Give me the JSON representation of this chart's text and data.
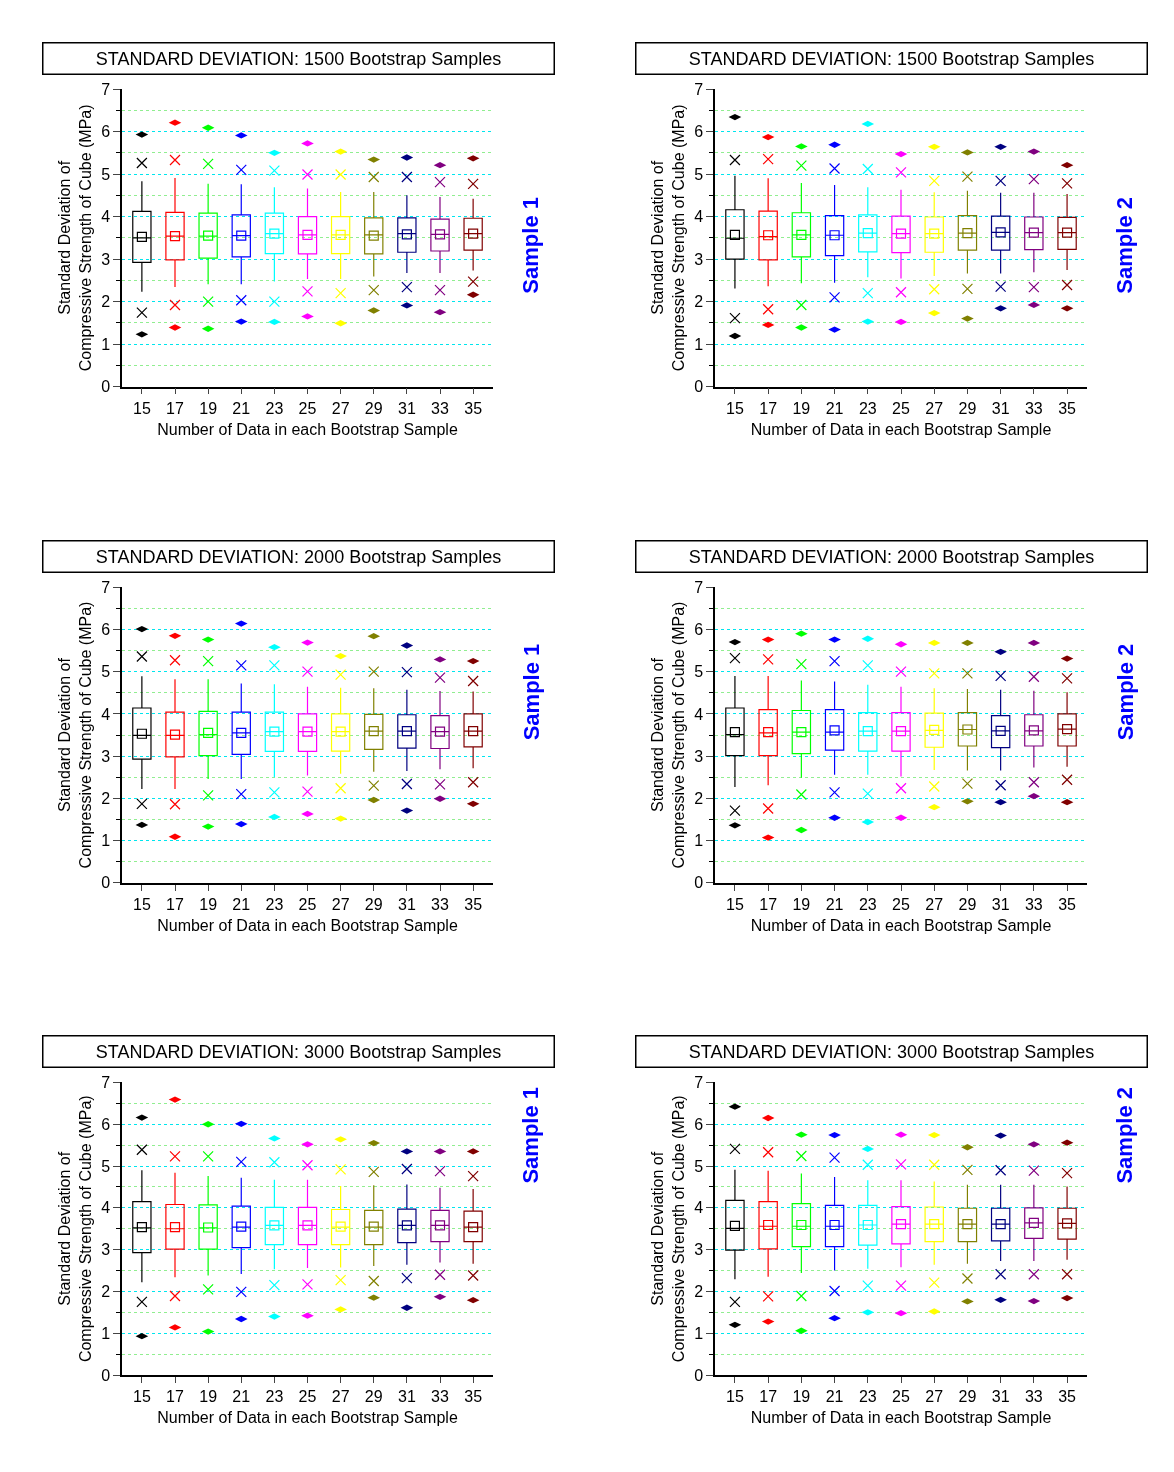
{
  "chart_data": [
    {
      "type": "box",
      "title": "STANDARD DEVIATION: 1500 Bootstrap Samples",
      "xlabel": "Number of Data in each Bootstrap Sample",
      "ylabel": "Standard Deviation of\nCompressive Strength of Cube (MPa)",
      "annotations": [
        "Sample 1"
      ],
      "categories": [
        "15",
        "17",
        "19",
        "21",
        "23",
        "25",
        "27",
        "29",
        "31",
        "33",
        "35"
      ],
      "colors": [
        "#000000",
        "#ff0000",
        "#00ff00",
        "#0000ff",
        "#00ffff",
        "#ff00ff",
        "#ffff00",
        "#808000",
        "#000080",
        "#800080",
        "#800000"
      ],
      "boxes": [
        {
          "low": 2.23,
          "q1": 2.92,
          "median": 3.5,
          "q3": 4.12,
          "high": 4.83,
          "mean": 3.52,
          "outliers": [
            1.23,
            1.74,
            5.26,
            5.93
          ]
        },
        {
          "low": 2.34,
          "q1": 2.98,
          "median": 3.54,
          "q3": 4.1,
          "high": 4.91,
          "mean": 3.54,
          "outliers": [
            1.39,
            1.92,
            5.33,
            6.21
          ]
        },
        {
          "low": 2.41,
          "q1": 3.02,
          "median": 3.54,
          "q3": 4.08,
          "high": 4.77,
          "mean": 3.55,
          "outliers": [
            1.36,
            2.0,
            5.24,
            6.09
          ]
        },
        {
          "low": 2.41,
          "q1": 3.05,
          "median": 3.55,
          "q3": 4.04,
          "high": 4.76,
          "mean": 3.55,
          "outliers": [
            1.53,
            2.03,
            5.1,
            5.91
          ]
        },
        {
          "low": 2.47,
          "q1": 3.13,
          "median": 3.6,
          "q3": 4.08,
          "high": 4.69,
          "mean": 3.6,
          "outliers": [
            1.52,
            2.0,
            5.08,
            5.5
          ]
        },
        {
          "low": 2.53,
          "q1": 3.12,
          "median": 3.57,
          "q3": 4.0,
          "high": 4.66,
          "mean": 3.57,
          "outliers": [
            1.65,
            2.24,
            4.99,
            5.72
          ]
        },
        {
          "low": 2.53,
          "q1": 3.13,
          "median": 3.57,
          "q3": 4.0,
          "high": 4.58,
          "mean": 3.57,
          "outliers": [
            1.49,
            2.2,
            4.99,
            5.53
          ]
        },
        {
          "low": 2.59,
          "q1": 3.12,
          "median": 3.57,
          "q3": 3.97,
          "high": 4.58,
          "mean": 3.55,
          "outliers": [
            1.79,
            2.27,
            4.93,
            5.34
          ]
        },
        {
          "low": 2.67,
          "q1": 3.16,
          "median": 3.6,
          "q3": 3.97,
          "high": 4.5,
          "mean": 3.58,
          "outliers": [
            1.91,
            2.34,
            4.93,
            5.39
          ]
        },
        {
          "low": 2.67,
          "q1": 3.19,
          "median": 3.58,
          "q3": 3.94,
          "high": 4.46,
          "mean": 3.58,
          "outliers": [
            1.75,
            2.27,
            4.81,
            5.21
          ]
        },
        {
          "low": 2.73,
          "q1": 3.21,
          "median": 3.6,
          "q3": 3.96,
          "high": 4.42,
          "mean": 3.6,
          "outliers": [
            2.16,
            2.47,
            4.77,
            5.37
          ]
        }
      ],
      "ylim": [
        0,
        7
      ],
      "yticks": [
        0,
        {
          "value": 0.5,
          "label": null
        },
        1,
        {
          "value": 1.5,
          "label": null
        },
        2,
        {
          "value": 2.5,
          "label": null
        },
        3,
        {
          "value": 3.5,
          "label": null
        },
        4,
        {
          "value": 4.5,
          "label": null
        },
        5,
        {
          "value": 5.5,
          "label": null
        },
        6,
        {
          "value": 6.5,
          "label": null
        },
        7
      ],
      "grid": "y"
    },
    {
      "type": "box",
      "title": "STANDARD DEVIATION: 1500 Bootstrap Samples",
      "xlabel": "Number of Data in each Bootstrap Sample",
      "ylabel": "Standard Deviation of\nCompressive Strength of Cube (MPa)",
      "annotations": [
        "Sample 2"
      ],
      "categories": [
        "15",
        "17",
        "19",
        "21",
        "23",
        "25",
        "27",
        "29",
        "31",
        "33",
        "35"
      ],
      "colors": [
        "#000000",
        "#ff0000",
        "#00ff00",
        "#0000ff",
        "#00ffff",
        "#ff00ff",
        "#ffff00",
        "#808000",
        "#000080",
        "#800080",
        "#800000"
      ],
      "boxes": [
        {
          "low": 2.31,
          "q1": 3.0,
          "median": 3.49,
          "q3": 4.16,
          "high": 4.96,
          "mean": 3.57,
          "outliers": [
            1.19,
            1.61,
            5.33,
            6.34
          ]
        },
        {
          "low": 2.36,
          "q1": 2.98,
          "median": 3.53,
          "q3": 4.13,
          "high": 4.9,
          "mean": 3.56,
          "outliers": [
            1.45,
            1.82,
            5.35,
            5.87
          ]
        },
        {
          "low": 2.43,
          "q1": 3.05,
          "median": 3.57,
          "q3": 4.09,
          "high": 4.79,
          "mean": 3.57,
          "outliers": [
            1.39,
            1.92,
            5.2,
            5.65
          ]
        },
        {
          "low": 2.44,
          "q1": 3.08,
          "median": 3.56,
          "q3": 4.02,
          "high": 4.74,
          "mean": 3.56,
          "outliers": [
            1.34,
            2.1,
            5.13,
            5.69
          ]
        },
        {
          "low": 2.57,
          "q1": 3.17,
          "median": 3.61,
          "q3": 4.04,
          "high": 4.69,
          "mean": 3.61,
          "outliers": [
            1.53,
            2.2,
            5.12,
            6.18
          ]
        },
        {
          "low": 2.54,
          "q1": 3.15,
          "median": 3.6,
          "q3": 4.01,
          "high": 4.63,
          "mean": 3.6,
          "outliers": [
            1.52,
            2.22,
            5.04,
            5.47
          ]
        },
        {
          "low": 2.6,
          "q1": 3.16,
          "median": 3.6,
          "q3": 3.99,
          "high": 4.57,
          "mean": 3.6,
          "outliers": [
            1.73,
            2.29,
            4.84,
            5.64
          ]
        },
        {
          "low": 2.66,
          "q1": 3.21,
          "median": 3.61,
          "q3": 4.02,
          "high": 4.61,
          "mean": 3.61,
          "outliers": [
            1.6,
            2.3,
            4.94,
            5.51
          ]
        },
        {
          "low": 2.66,
          "q1": 3.21,
          "median": 3.63,
          "q3": 4.01,
          "high": 4.56,
          "mean": 3.63,
          "outliers": [
            1.84,
            2.35,
            4.84,
            5.64
          ]
        },
        {
          "low": 2.69,
          "q1": 3.22,
          "median": 3.62,
          "q3": 3.99,
          "high": 4.56,
          "mean": 3.62,
          "outliers": [
            1.92,
            2.34,
            4.88,
            5.53
          ]
        },
        {
          "low": 2.74,
          "q1": 3.23,
          "median": 3.62,
          "q3": 3.98,
          "high": 4.53,
          "mean": 3.62,
          "outliers": [
            1.84,
            2.39,
            4.78,
            5.21
          ]
        }
      ],
      "ylim": [
        0,
        7
      ],
      "yticks": [
        0,
        {
          "value": 0.5,
          "label": null
        },
        1,
        {
          "value": 1.5,
          "label": null
        },
        2,
        {
          "value": 2.5,
          "label": null
        },
        3,
        {
          "value": 3.5,
          "label": null
        },
        4,
        {
          "value": 4.5,
          "label": null
        },
        5,
        {
          "value": 5.5,
          "label": null
        },
        6,
        {
          "value": 6.5,
          "label": null
        },
        7
      ],
      "grid": "y"
    },
    {
      "type": "box",
      "title": "STANDARD DEVIATION: 2000 Bootstrap Samples",
      "xlabel": "Number of Data in each Bootstrap Sample",
      "ylabel": "Standard Deviation of\nCompressive Strength of Cube (MPa)",
      "annotations": [
        "Sample 1"
      ],
      "categories": [
        "15",
        "17",
        "19",
        "21",
        "23",
        "25",
        "27",
        "29",
        "31",
        "33",
        "35"
      ],
      "colors": [
        "#000000",
        "#ff0000",
        "#00ff00",
        "#0000ff",
        "#00ffff",
        "#ff00ff",
        "#ffff00",
        "#808000",
        "#000080",
        "#800080",
        "#800000"
      ],
      "boxes": [
        {
          "low": 2.22,
          "q1": 2.93,
          "median": 3.49,
          "q3": 4.14,
          "high": 4.89,
          "mean": 3.53,
          "outliers": [
            1.37,
            1.87,
            5.36,
            6.01
          ]
        },
        {
          "low": 2.22,
          "q1": 2.98,
          "median": 3.49,
          "q3": 4.04,
          "high": 4.82,
          "mean": 3.51,
          "outliers": [
            1.09,
            1.86,
            5.27,
            5.85
          ]
        },
        {
          "low": 2.46,
          "q1": 3.01,
          "median": 3.51,
          "q3": 4.06,
          "high": 4.82,
          "mean": 3.55,
          "outliers": [
            1.33,
            2.07,
            5.25,
            5.76
          ]
        },
        {
          "low": 2.46,
          "q1": 3.04,
          "median": 3.55,
          "q3": 4.04,
          "high": 4.72,
          "mean": 3.55,
          "outliers": [
            1.39,
            2.1,
            5.15,
            6.14
          ]
        },
        {
          "low": 2.5,
          "q1": 3.11,
          "median": 3.58,
          "q3": 4.04,
          "high": 4.7,
          "mean": 3.58,
          "outliers": [
            1.56,
            2.14,
            5.15,
            5.58
          ]
        },
        {
          "low": 2.54,
          "q1": 3.11,
          "median": 3.58,
          "q3": 4.0,
          "high": 4.64,
          "mean": 3.58,
          "outliers": [
            1.63,
            2.16,
            5.0,
            5.69
          ]
        },
        {
          "low": 2.58,
          "q1": 3.12,
          "median": 3.58,
          "q3": 4.0,
          "high": 4.62,
          "mean": 3.58,
          "outliers": [
            1.52,
            2.24,
            4.93,
            5.37
          ]
        },
        {
          "low": 2.63,
          "q1": 3.16,
          "median": 3.59,
          "q3": 3.99,
          "high": 4.61,
          "mean": 3.59,
          "outliers": [
            1.96,
            2.3,
            5.0,
            5.84
          ]
        },
        {
          "low": 2.65,
          "q1": 3.19,
          "median": 3.59,
          "q3": 3.98,
          "high": 4.57,
          "mean": 3.59,
          "outliers": [
            1.71,
            2.34,
            4.99,
            5.62
          ]
        },
        {
          "low": 2.69,
          "q1": 3.18,
          "median": 3.58,
          "q3": 3.96,
          "high": 4.54,
          "mean": 3.58,
          "outliers": [
            1.99,
            2.33,
            4.86,
            5.29
          ]
        },
        {
          "low": 2.71,
          "q1": 3.22,
          "median": 3.59,
          "q3": 4.0,
          "high": 4.53,
          "mean": 3.59,
          "outliers": [
            1.87,
            2.38,
            4.78,
            5.25
          ]
        }
      ],
      "ylim": [
        0,
        7
      ],
      "yticks": [
        0,
        {
          "value": 0.5,
          "label": null
        },
        1,
        {
          "value": 1.5,
          "label": null
        },
        2,
        {
          "value": 2.5,
          "label": null
        },
        3,
        {
          "value": 3.5,
          "label": null
        },
        4,
        {
          "value": 4.5,
          "label": null
        },
        5,
        {
          "value": 5.5,
          "label": null
        },
        6,
        {
          "value": 6.5,
          "label": null
        },
        7
      ],
      "grid": "y"
    },
    {
      "type": "box",
      "title": "STANDARD DEVIATION: 2000 Bootstrap Samples",
      "xlabel": "Number of Data in each Bootstrap Sample",
      "ylabel": "Standard Deviation of\nCompressive Strength of Cube (MPa)",
      "annotations": [
        "Sample 2"
      ],
      "categories": [
        "15",
        "17",
        "19",
        "21",
        "23",
        "25",
        "27",
        "29",
        "31",
        "33",
        "35"
      ],
      "colors": [
        "#000000",
        "#ff0000",
        "#00ff00",
        "#0000ff",
        "#00ffff",
        "#ff00ff",
        "#ffff00",
        "#808000",
        "#000080",
        "#800080",
        "#800000"
      ],
      "boxes": [
        {
          "low": 2.27,
          "q1": 3.01,
          "median": 3.51,
          "q3": 4.14,
          "high": 4.9,
          "mean": 3.57,
          "outliers": [
            1.36,
            1.71,
            5.32,
            5.7
          ]
        },
        {
          "low": 2.31,
          "q1": 3.01,
          "median": 3.55,
          "q3": 4.1,
          "high": 4.9,
          "mean": 3.57,
          "outliers": [
            1.07,
            1.76,
            5.29,
            5.76
          ]
        },
        {
          "low": 2.49,
          "q1": 3.06,
          "median": 3.57,
          "q3": 4.08,
          "high": 4.79,
          "mean": 3.57,
          "outliers": [
            1.25,
            2.09,
            5.18,
            5.9
          ]
        },
        {
          "low": 2.56,
          "q1": 3.14,
          "median": 3.57,
          "q3": 4.1,
          "high": 4.77,
          "mean": 3.61,
          "outliers": [
            1.54,
            2.14,
            5.25,
            5.76
          ]
        },
        {
          "low": 2.56,
          "q1": 3.12,
          "median": 3.59,
          "q3": 4.03,
          "high": 4.69,
          "mean": 3.59,
          "outliers": [
            1.44,
            2.11,
            5.15,
            5.78
          ]
        },
        {
          "low": 2.52,
          "q1": 3.12,
          "median": 3.59,
          "q3": 4.03,
          "high": 4.64,
          "mean": 3.59,
          "outliers": [
            1.54,
            2.24,
            5.0,
            5.65
          ]
        },
        {
          "low": 2.67,
          "q1": 3.21,
          "median": 3.61,
          "q3": 4.02,
          "high": 4.61,
          "mean": 3.62,
          "outliers": [
            1.79,
            2.28,
            4.96,
            5.68
          ]
        },
        {
          "low": 2.66,
          "q1": 3.24,
          "median": 3.63,
          "q3": 4.03,
          "high": 4.59,
          "mean": 3.63,
          "outliers": [
            1.93,
            2.35,
            4.96,
            5.68
          ]
        },
        {
          "low": 2.66,
          "q1": 3.2,
          "median": 3.6,
          "q3": 3.96,
          "high": 4.57,
          "mean": 3.6,
          "outliers": [
            1.91,
            2.31,
            4.9,
            5.47
          ]
        },
        {
          "low": 2.73,
          "q1": 3.24,
          "median": 3.6,
          "q3": 3.98,
          "high": 4.55,
          "mean": 3.61,
          "outliers": [
            2.05,
            2.38,
            4.88,
            5.68
          ]
        },
        {
          "low": 2.75,
          "q1": 3.24,
          "median": 3.64,
          "q3": 4.0,
          "high": 4.51,
          "mean": 3.64,
          "outliers": [
            1.91,
            2.44,
            4.84,
            5.31
          ]
        }
      ],
      "ylim": [
        0,
        7
      ],
      "yticks": [
        0,
        {
          "value": 0.5,
          "label": null
        },
        1,
        {
          "value": 1.5,
          "label": null
        },
        2,
        {
          "value": 2.5,
          "label": null
        },
        3,
        {
          "value": 3.5,
          "label": null
        },
        4,
        {
          "value": 4.5,
          "label": null
        },
        5,
        {
          "value": 5.5,
          "label": null
        },
        6,
        {
          "value": 6.5,
          "label": null
        },
        7
      ],
      "grid": "y"
    },
    {
      "type": "box",
      "title": "STANDARD DEVIATION: 3000 Bootstrap Samples",
      "xlabel": "Number of Data in each Bootstrap Sample",
      "ylabel": "Standard Deviation of\nCompressive Strength of Cube (MPa)",
      "annotations": [
        "Sample 1"
      ],
      "categories": [
        "15",
        "17",
        "19",
        "21",
        "23",
        "25",
        "27",
        "29",
        "31",
        "33",
        "35"
      ],
      "colors": [
        "#000000",
        "#ff0000",
        "#00ff00",
        "#0000ff",
        "#00ffff",
        "#ff00ff",
        "#ffff00",
        "#808000",
        "#000080",
        "#800080",
        "#800000"
      ],
      "boxes": [
        {
          "low": 2.22,
          "q1": 2.93,
          "median": 3.52,
          "q3": 4.15,
          "high": 4.9,
          "mean": 3.54,
          "outliers": [
            0.93,
            1.75,
            5.39,
            6.16
          ]
        },
        {
          "low": 2.34,
          "q1": 3.01,
          "median": 3.5,
          "q3": 4.08,
          "high": 4.84,
          "mean": 3.54,
          "outliers": [
            1.14,
            1.89,
            5.23,
            6.59
          ]
        },
        {
          "low": 2.38,
          "q1": 3.01,
          "median": 3.52,
          "q3": 4.07,
          "high": 4.76,
          "mean": 3.53,
          "outliers": [
            1.04,
            2.05,
            5.23,
            6.0
          ]
        },
        {
          "low": 2.42,
          "q1": 3.05,
          "median": 3.54,
          "q3": 4.04,
          "high": 4.72,
          "mean": 3.55,
          "outliers": [
            1.34,
            1.99,
            5.1,
            6.01
          ]
        },
        {
          "low": 2.53,
          "q1": 3.12,
          "median": 3.58,
          "q3": 4.01,
          "high": 4.67,
          "mean": 3.58,
          "outliers": [
            1.4,
            2.15,
            5.09,
            5.66
          ]
        },
        {
          "low": 2.56,
          "q1": 3.12,
          "median": 3.58,
          "q3": 4.01,
          "high": 4.67,
          "mean": 3.58,
          "outliers": [
            1.42,
            2.17,
            5.02,
            5.52
          ]
        },
        {
          "low": 2.57,
          "q1": 3.12,
          "median": 3.54,
          "q3": 3.96,
          "high": 4.52,
          "mean": 3.55,
          "outliers": [
            1.57,
            2.27,
            4.92,
            5.64
          ]
        },
        {
          "low": 2.61,
          "q1": 3.12,
          "median": 3.54,
          "q3": 3.94,
          "high": 4.54,
          "mean": 3.55,
          "outliers": [
            1.85,
            2.25,
            4.86,
            5.55
          ]
        },
        {
          "low": 2.64,
          "q1": 3.17,
          "median": 3.58,
          "q3": 3.97,
          "high": 4.56,
          "mean": 3.58,
          "outliers": [
            1.61,
            2.32,
            4.93,
            5.35
          ]
        },
        {
          "low": 2.69,
          "q1": 3.19,
          "median": 3.58,
          "q3": 3.94,
          "high": 4.48,
          "mean": 3.58,
          "outliers": [
            1.87,
            2.4,
            4.88,
            5.35
          ]
        },
        {
          "low": 2.66,
          "q1": 3.19,
          "median": 3.54,
          "q3": 3.92,
          "high": 4.45,
          "mean": 3.54,
          "outliers": [
            1.79,
            2.38,
            4.76,
            5.35
          ]
        }
      ],
      "ylim": [
        0,
        7
      ],
      "yticks": [
        0,
        {
          "value": 0.5,
          "label": null
        },
        1,
        {
          "value": 1.5,
          "label": null
        },
        2,
        {
          "value": 2.5,
          "label": null
        },
        3,
        {
          "value": 3.5,
          "label": null
        },
        4,
        {
          "value": 4.5,
          "label": null
        },
        5,
        {
          "value": 5.5,
          "label": null
        },
        6,
        {
          "value": 6.5,
          "label": null
        },
        7
      ],
      "grid": "y"
    },
    {
      "type": "box",
      "title": "STANDARD DEVIATION: 3000 Bootstrap Samples",
      "xlabel": "Number of Data in each Bootstrap Sample",
      "ylabel": "Standard Deviation of\nCompressive Strength of Cube (MPa)",
      "annotations": [
        "Sample 2"
      ],
      "categories": [
        "15",
        "17",
        "19",
        "21",
        "23",
        "25",
        "27",
        "29",
        "31",
        "33",
        "35"
      ],
      "colors": [
        "#000000",
        "#ff0000",
        "#00ff00",
        "#0000ff",
        "#00ffff",
        "#ff00ff",
        "#ffff00",
        "#808000",
        "#000080",
        "#800080",
        "#800000"
      ],
      "boxes": [
        {
          "low": 2.29,
          "q1": 2.99,
          "median": 3.51,
          "q3": 4.18,
          "high": 4.91,
          "mean": 3.57,
          "outliers": [
            1.2,
            1.75,
            5.41,
            6.42
          ]
        },
        {
          "low": 2.35,
          "q1": 3.02,
          "median": 3.56,
          "q3": 4.15,
          "high": 4.89,
          "mean": 3.59,
          "outliers": [
            1.28,
            1.88,
            5.33,
            6.15
          ]
        },
        {
          "low": 2.44,
          "q1": 3.07,
          "median": 3.56,
          "q3": 4.1,
          "high": 4.82,
          "mean": 3.59,
          "outliers": [
            1.06,
            1.89,
            5.24,
            5.75
          ]
        },
        {
          "low": 2.5,
          "q1": 3.07,
          "median": 3.56,
          "q3": 4.06,
          "high": 4.74,
          "mean": 3.59,
          "outliers": [
            1.36,
            2.01,
            5.2,
            5.74
          ]
        },
        {
          "low": 2.54,
          "q1": 3.11,
          "median": 3.59,
          "q3": 4.06,
          "high": 4.66,
          "mean": 3.59,
          "outliers": [
            1.5,
            2.14,
            5.03,
            5.41
          ]
        },
        {
          "low": 2.58,
          "q1": 3.14,
          "median": 3.61,
          "q3": 4.03,
          "high": 4.66,
          "mean": 3.61,
          "outliers": [
            1.48,
            2.14,
            5.04,
            5.75
          ]
        },
        {
          "low": 2.64,
          "q1": 3.19,
          "median": 3.61,
          "q3": 4.02,
          "high": 4.63,
          "mean": 3.61,
          "outliers": [
            1.52,
            2.21,
            5.03,
            5.74
          ]
        },
        {
          "low": 2.66,
          "q1": 3.19,
          "median": 3.61,
          "q3": 3.99,
          "high": 4.55,
          "mean": 3.61,
          "outliers": [
            1.76,
            2.31,
            4.91,
            5.45
          ]
        },
        {
          "low": 2.73,
          "q1": 3.21,
          "median": 3.61,
          "q3": 3.99,
          "high": 4.55,
          "mean": 3.61,
          "outliers": [
            1.8,
            2.41,
            4.9,
            5.73
          ]
        },
        {
          "low": 2.73,
          "q1": 3.27,
          "median": 3.64,
          "q3": 4.0,
          "high": 4.55,
          "mean": 3.64,
          "outliers": [
            1.77,
            2.41,
            4.89,
            5.52
          ]
        },
        {
          "low": 2.76,
          "q1": 3.25,
          "median": 3.63,
          "q3": 3.99,
          "high": 4.51,
          "mean": 3.63,
          "outliers": [
            1.84,
            2.41,
            4.83,
            5.56
          ]
        }
      ],
      "ylim": [
        0,
        7
      ],
      "yticks": [
        0,
        {
          "value": 0.5,
          "label": null
        },
        1,
        {
          "value": 1.5,
          "label": null
        },
        2,
        {
          "value": 2.5,
          "label": null
        },
        3,
        {
          "value": 3.5,
          "label": null
        },
        4,
        {
          "value": 4.5,
          "label": null
        },
        5,
        {
          "value": 5.5,
          "label": null
        },
        6,
        {
          "value": 6.5,
          "label": null
        },
        7
      ],
      "grid": "y"
    }
  ]
}
